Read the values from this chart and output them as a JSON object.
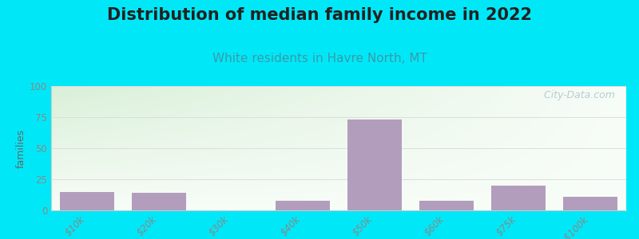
{
  "title": "Distribution of median family income in 2022",
  "subtitle": "White residents in Havre North, MT",
  "ylabel": "families",
  "categories": [
    "$10k",
    "$20k",
    "$30k",
    "$40k",
    "$50k",
    "$60k",
    "$75k",
    ">$100k"
  ],
  "values": [
    15,
    14,
    0,
    8,
    73,
    8,
    20,
    11
  ],
  "bar_color": "#b39dbd",
  "ylim": [
    0,
    100
  ],
  "yticks": [
    0,
    25,
    50,
    75,
    100
  ],
  "background_outer": "#00e8f8",
  "background_inner_topleft": "#daeeda",
  "background_inner_topright": "#eef5ee",
  "background_inner_bottom": "#f8faf8",
  "title_fontsize": 15,
  "subtitle_fontsize": 11,
  "title_color": "#222222",
  "subtitle_color": "#3a9aaa",
  "watermark_text": "  City-Data.com",
  "watermark_color": "#adc4cc",
  "ylabel_color": "#666666",
  "tick_label_color": "#888888",
  "spine_color": "#cccccc",
  "grid_color": "#dddddd"
}
